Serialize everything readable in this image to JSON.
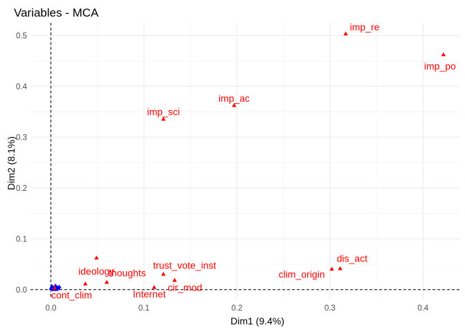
{
  "chart_data": {
    "type": "scatter",
    "title": "Variables - MCA",
    "xlabel": "Dim1 (9.4%)",
    "ylabel": "Dim2 (8.1%)",
    "xlim": [
      -0.022,
      0.44
    ],
    "ylim": [
      -0.018,
      0.525
    ],
    "x_ticks": [
      0.0,
      0.1,
      0.2,
      0.3,
      0.4
    ],
    "x_tick_labels": [
      "0.0",
      "0.1",
      "0.2",
      "0.3",
      "0.4"
    ],
    "y_ticks": [
      0.0,
      0.1,
      0.2,
      0.3,
      0.4,
      0.5
    ],
    "y_tick_labels": [
      "0.0",
      "0.1",
      "0.2",
      "0.3",
      "0.4",
      "0.5"
    ],
    "grid": true,
    "reference_lines": {
      "x": 0,
      "y": 0,
      "style": "dashed"
    },
    "colors": {
      "labeled": "#ff0000",
      "unlabeled": "#0000ff"
    },
    "points": [
      {
        "label": "imp_re",
        "x": 0.317,
        "y": 0.503,
        "label_pos": "right"
      },
      {
        "label": "imp_po",
        "x": 0.422,
        "y": 0.462,
        "label_pos": "below-left"
      },
      {
        "label": "imp_ac",
        "x": 0.197,
        "y": 0.362,
        "label_pos": "above"
      },
      {
        "label": "imp_sci",
        "x": 0.121,
        "y": 0.335,
        "label_pos": "above"
      },
      {
        "label": "dis_act",
        "x": 0.311,
        "y": 0.041,
        "label_pos": "above-right"
      },
      {
        "label": "clim_origin",
        "x": 0.302,
        "y": 0.04,
        "label_pos": "below-left"
      },
      {
        "label": "trust_vote_inst",
        "x": 0.121,
        "y": 0.03,
        "label_pos": "above-right"
      },
      {
        "label": "cir_mod",
        "x": 0.133,
        "y": 0.018,
        "label_pos": "below-right"
      },
      {
        "label": "Internet",
        "x": 0.111,
        "y": 0.004,
        "label_pos": "below-left"
      },
      {
        "label": "thoughts",
        "x": 0.06,
        "y": 0.014,
        "label_pos": "above-right"
      },
      {
        "label": "ideology",
        "x": 0.049,
        "y": 0.062,
        "label_pos": "below-left"
      },
      {
        "label": "",
        "x": 0.037,
        "y": 0.011,
        "label_pos": "none"
      },
      {
        "label": "cont_clim",
        "x": 0.004,
        "y": 0.003,
        "label_pos": "below-right"
      }
    ],
    "unlabeled_points": [
      {
        "x": 0.0,
        "y": 0.002
      },
      {
        "x": 0.001,
        "y": 0.006
      },
      {
        "x": 0.002,
        "y": 0.004
      },
      {
        "x": 0.003,
        "y": 0.001
      },
      {
        "x": 0.004,
        "y": 0.005
      },
      {
        "x": 0.005,
        "y": 0.007
      },
      {
        "x": 0.006,
        "y": 0.003
      },
      {
        "x": 0.007,
        "y": 0.004
      },
      {
        "x": 0.008,
        "y": 0.002
      },
      {
        "x": 0.009,
        "y": 0.005
      },
      {
        "x": 0.002,
        "y": 0.0
      },
      {
        "x": 0.006,
        "y": 0.0
      }
    ]
  }
}
